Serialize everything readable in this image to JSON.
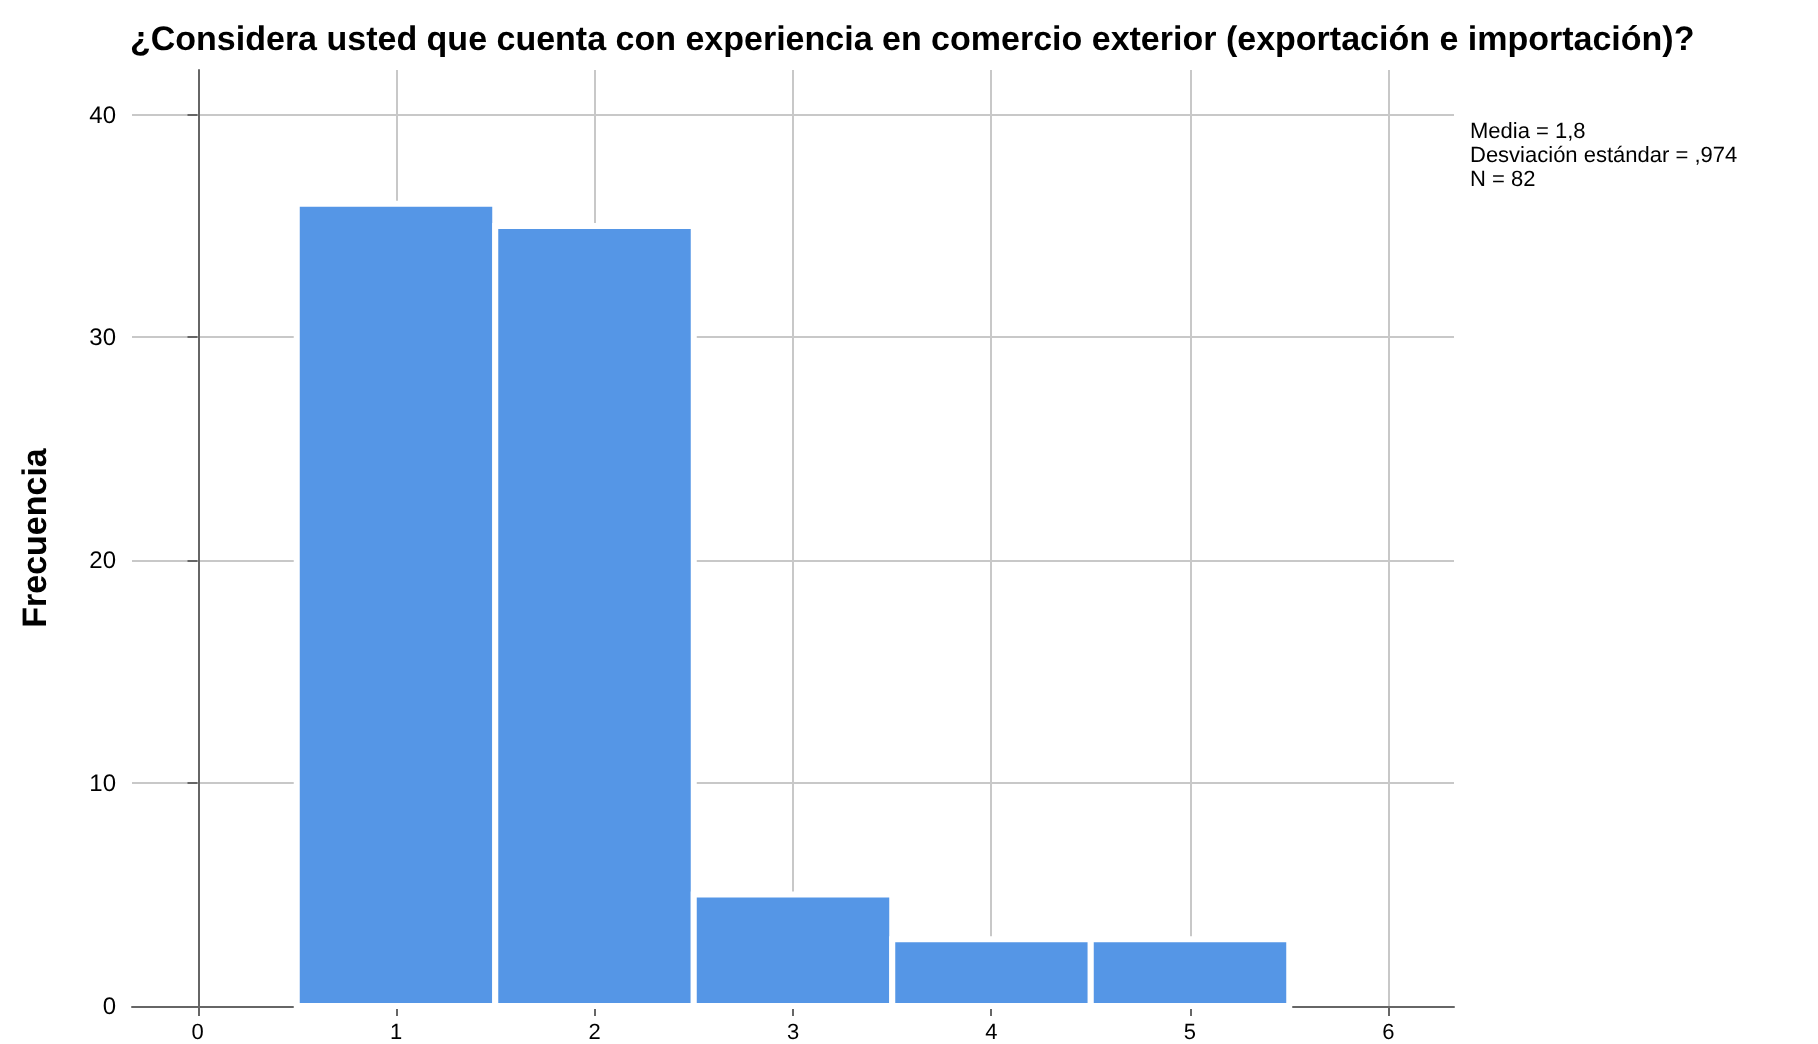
{
  "chart_data": {
    "type": "histogram",
    "title": "¿Considera usted que cuenta con experiencia en comercio exterior (exportación e importación)?",
    "ylabel": "Frecuencia",
    "bins": [
      0.5,
      1.5,
      2.5,
      3.5,
      4.5,
      5.5
    ],
    "values": [
      36,
      35,
      5,
      3,
      3
    ],
    "color": "#5596e6",
    "xlim": [
      -0.33,
      6.33
    ],
    "xticks": [
      0,
      1,
      2,
      3,
      4,
      5,
      6
    ],
    "ylim": [
      0,
      42
    ],
    "yticks": [
      0,
      10,
      20,
      30,
      40
    ],
    "grid": true,
    "annotations": [
      "Media = 1,8",
      "Desviación estándar = ,974",
      "N = 82"
    ]
  }
}
